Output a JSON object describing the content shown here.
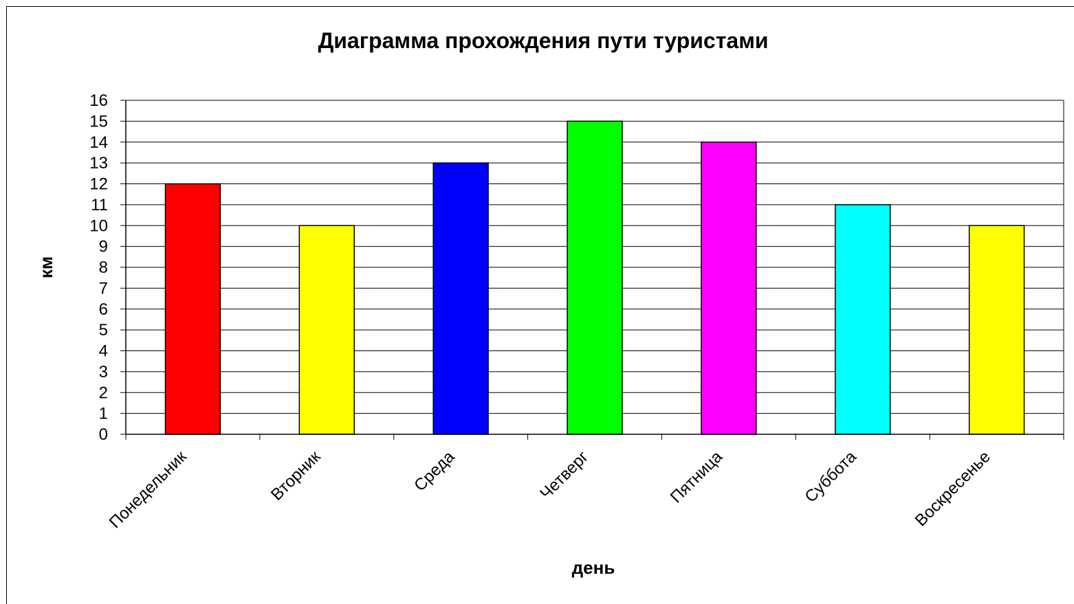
{
  "chart_data": {
    "type": "bar",
    "title": "Диаграмма прохождения пути туристами",
    "xlabel": "день",
    "ylabel": "км",
    "categories": [
      "Понедельник",
      "Вторник",
      "Среда",
      "Четверг",
      "Пятница",
      "Суббота",
      "Воскресенье"
    ],
    "values": [
      12,
      10,
      13,
      15,
      14,
      11,
      10
    ],
    "colors": [
      "#ff0000",
      "#ffff00",
      "#0000ff",
      "#00ff00",
      "#ff00ff",
      "#00ffff",
      "#ffff00"
    ],
    "ylim": [
      0,
      16
    ],
    "yticks": [
      "0",
      "1",
      "2",
      "3",
      "4",
      "5",
      "6",
      "7",
      "8",
      "9",
      "10",
      "11",
      "12",
      "13",
      "14",
      "15",
      "16"
    ],
    "grid": true,
    "legend": "none"
  }
}
